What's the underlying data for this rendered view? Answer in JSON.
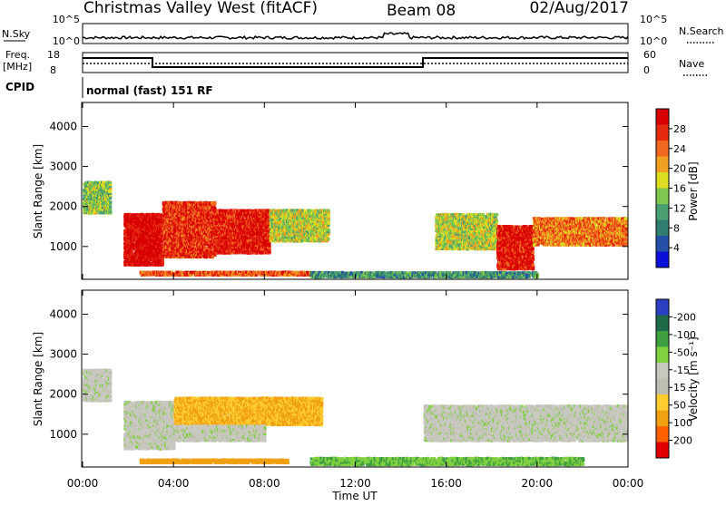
{
  "header": {
    "station": "Christmas Valley West (fitACF)",
    "beam": "Beam 08",
    "date": "02/Aug/2017"
  },
  "top_panels": {
    "nsky_label": "N.Sky",
    "nsky_ticks": [
      "10^5",
      "10^0"
    ],
    "nsearch_label": "N.Search",
    "nsearch_ticks": [
      "10^5",
      "10^0"
    ],
    "freq_label_line1": "Freq.",
    "freq_label_line2": "[MHz]",
    "freq_ticks": [
      "18",
      "8"
    ],
    "nave_label": "Nave",
    "nave_ticks": [
      "60",
      "0"
    ],
    "cpid_label": "CPID",
    "cpid_text": "normal (fast) 151 RF"
  },
  "colors": {
    "power": [
      "#0a10d8",
      "#2550a8",
      "#2e7d6e",
      "#4aa070",
      "#7ec850",
      "#dcdc20",
      "#f0a020",
      "#f06820",
      "#e52a10",
      "#d80000"
    ],
    "velocity": [
      "#e00000",
      "#ff6000",
      "#f0a010",
      "#ffcc30",
      "#bdbdb0",
      "#c8c8c0",
      "#80d040",
      "#3ea040",
      "#1e6a48",
      "#2a40c0"
    ]
  },
  "chart_data": [
    {
      "type": "heatmap",
      "title": "Power",
      "ylabel": "Slant Range [km]",
      "xlabel": "",
      "colorbar_label": "Power [dB]",
      "colorbar_ticks": [
        "4",
        "8",
        "12",
        "16",
        "20",
        "24",
        "28"
      ],
      "ylim": [
        180,
        4600
      ],
      "yticks": [
        "1000",
        "2000",
        "3000",
        "4000"
      ],
      "x_ticks": [
        "00:00",
        "04:00",
        "08:00",
        "12:00",
        "16:00",
        "20:00",
        "00:00"
      ],
      "regions": [
        {
          "t0": 1.8,
          "t1": 3.5,
          "r0": 500,
          "r1": 1800,
          "level": 28
        },
        {
          "t0": 3.5,
          "t1": 5.8,
          "r0": 700,
          "r1": 2100,
          "level": 24
        },
        {
          "t0": 5.8,
          "t1": 8.2,
          "r0": 800,
          "r1": 1900,
          "level": 26
        },
        {
          "t0": 8.2,
          "t1": 10.8,
          "r0": 1100,
          "r1": 1900,
          "level": 14
        },
        {
          "t0": 15.5,
          "t1": 18.2,
          "r0": 900,
          "r1": 1800,
          "level": 14
        },
        {
          "t0": 18.2,
          "t1": 19.8,
          "r0": 400,
          "r1": 1500,
          "level": 26
        },
        {
          "t0": 19.8,
          "t1": 23.9,
          "r0": 1000,
          "r1": 1700,
          "level": 20
        },
        {
          "t0": 0.0,
          "t1": 1.2,
          "r0": 1800,
          "r1": 2600,
          "level": 12
        },
        {
          "t0": 2.5,
          "t1": 10.0,
          "r0": 250,
          "r1": 350,
          "level": 22
        },
        {
          "t0": 10.0,
          "t1": 20.0,
          "r0": 200,
          "r1": 350,
          "level": 8
        }
      ]
    },
    {
      "type": "heatmap",
      "title": "Velocity",
      "ylabel": "Slant Range [km]",
      "xlabel": "Time UT",
      "colorbar_label": "Velocity [m s⁻¹]",
      "colorbar_ticks": [
        "200",
        "100",
        "50",
        "15",
        "-15",
        "-50",
        "-100",
        "-200"
      ],
      "ylim": [
        180,
        4600
      ],
      "yticks": [
        "1000",
        "2000",
        "3000",
        "4000"
      ],
      "x_ticks": [
        "00:00",
        "04:00",
        "08:00",
        "12:00",
        "16:00",
        "20:00",
        "00:00"
      ],
      "regions": [
        {
          "t0": 1.8,
          "t1": 4.0,
          "r0": 600,
          "r1": 1800,
          "level": 0
        },
        {
          "t0": 4.0,
          "t1": 10.5,
          "r0": 1200,
          "r1": 1900,
          "level": -40
        },
        {
          "t0": 4.0,
          "t1": 8.0,
          "r0": 800,
          "r1": 1200,
          "level": 0
        },
        {
          "t0": 15.0,
          "t1": 23.9,
          "r0": 800,
          "r1": 1700,
          "level": 0
        },
        {
          "t0": 0.0,
          "t1": 1.2,
          "r0": 1800,
          "r1": 2600,
          "level": 0
        },
        {
          "t0": 10.0,
          "t1": 22.0,
          "r0": 200,
          "r1": 400,
          "level": 30
        },
        {
          "t0": 2.5,
          "t1": 9.0,
          "r0": 250,
          "r1": 350,
          "level": -60
        }
      ]
    }
  ]
}
